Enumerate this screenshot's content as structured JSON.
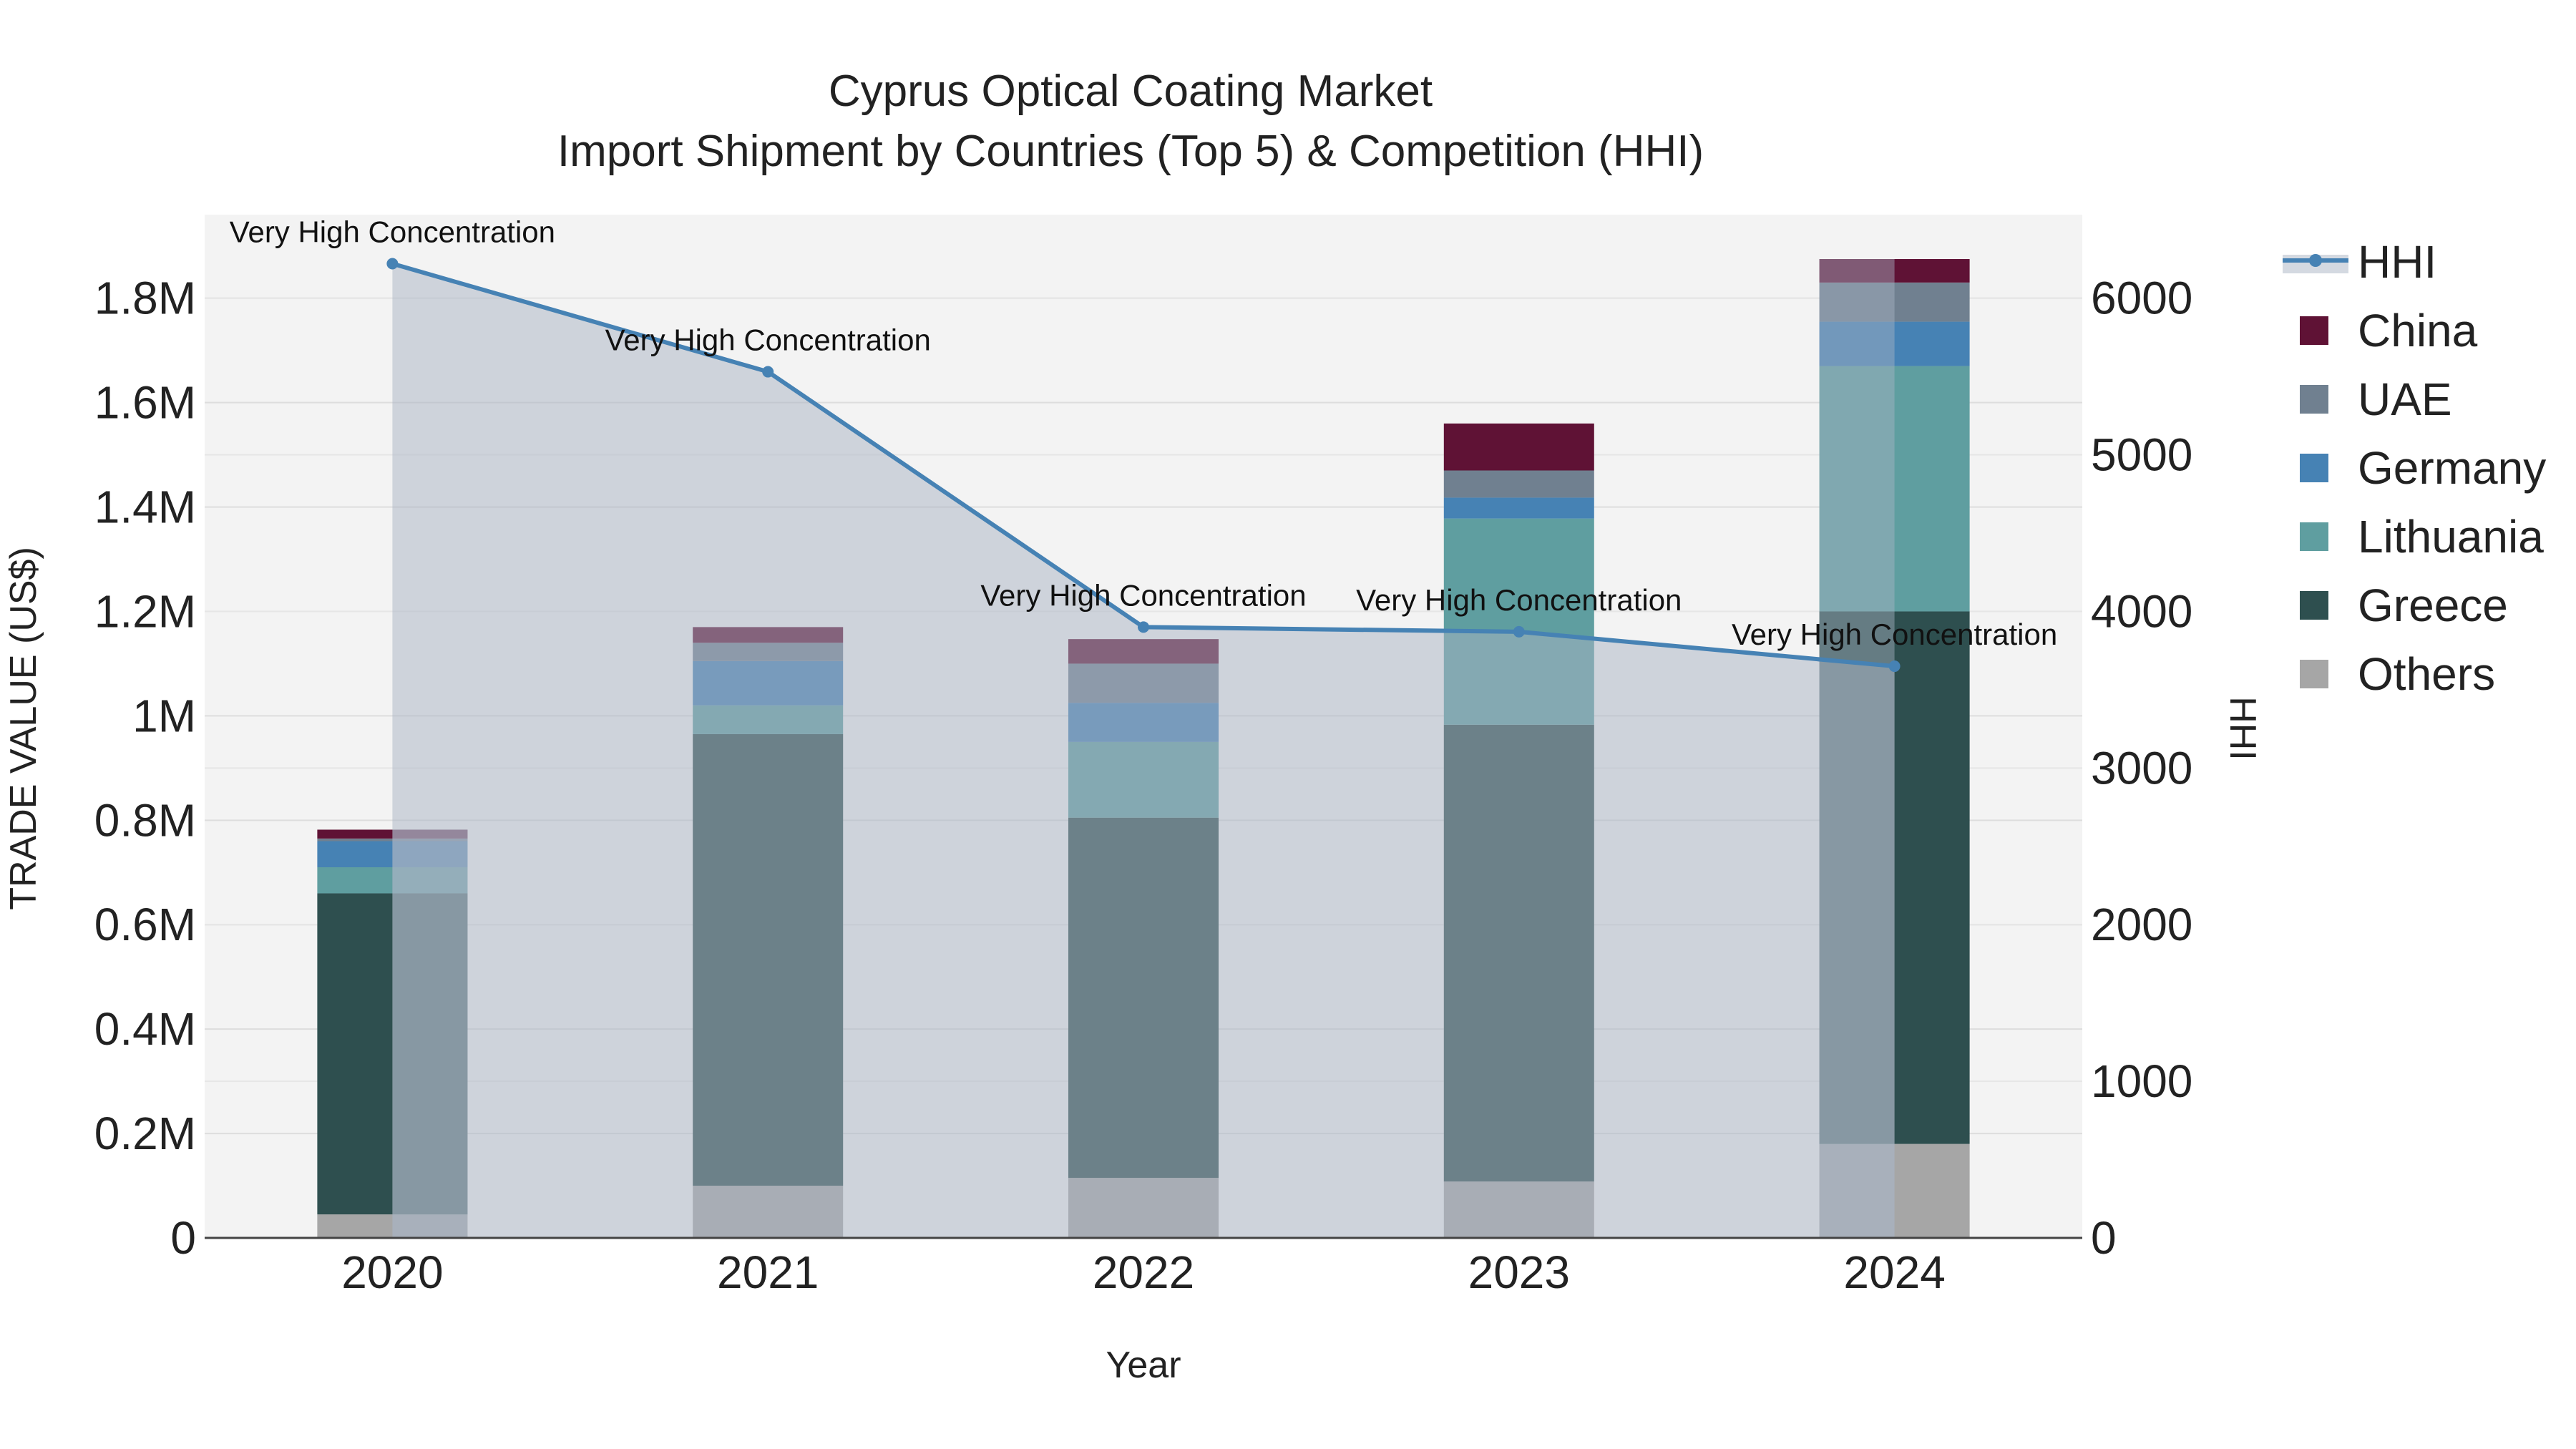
{
  "chart_data": {
    "type": "bar",
    "title": "Cyprus Optical Coating Market",
    "subtitle": "Import Shipment by Countries (Top 5) & Competition (HHI)",
    "xlabel": "Year",
    "ylabel": "TRADE VALUE (US$)",
    "y2label": "HHI",
    "categories": [
      "2020",
      "2021",
      "2022",
      "2023",
      "2024"
    ],
    "ylim": [
      0,
      1960000
    ],
    "y2lim": [
      0,
      6533
    ],
    "y_ticks": [
      0,
      200000,
      400000,
      600000,
      800000,
      1000000,
      1200000,
      1400000,
      1600000,
      1800000
    ],
    "y_tick_labels": [
      "0",
      "0.2M",
      "0.4M",
      "0.6M",
      "0.8M",
      "1M",
      "1.2M",
      "1.4M",
      "1.6M",
      "1.8M"
    ],
    "y2_ticks": [
      0,
      1000,
      2000,
      3000,
      4000,
      5000,
      6000
    ],
    "y2_tick_labels": [
      "0",
      "1000",
      "2000",
      "3000",
      "4000",
      "5000",
      "6000"
    ],
    "series": [
      {
        "name": "Others",
        "color": "#a6a6a6",
        "values": [
          45000,
          100000,
          115000,
          108000,
          180000
        ]
      },
      {
        "name": "Greece",
        "color": "#2e4f4f",
        "values": [
          615000,
          865000,
          690000,
          875000,
          1020000
        ]
      },
      {
        "name": "Lithuania",
        "color": "#5f9ea0",
        "values": [
          50000,
          55000,
          145000,
          395000,
          470000
        ]
      },
      {
        "name": "Germany",
        "color": "#4682b4",
        "values": [
          50000,
          85000,
          75000,
          40000,
          85000
        ]
      },
      {
        "name": "UAE",
        "color": "#708090",
        "values": [
          5000,
          35000,
          75000,
          52000,
          75000
        ]
      },
      {
        "name": "China",
        "color": "#5f1235",
        "values": [
          17000,
          30000,
          47000,
          90000,
          45000
        ]
      }
    ],
    "hhi": {
      "name": "HHI",
      "color": "#4682b4",
      "values": [
        6220,
        5530,
        3900,
        3870,
        3650
      ],
      "annotations": [
        "Very High Concentration",
        "Very High Concentration",
        "Very High Concentration",
        "Very High Concentration",
        "Very High Concentration"
      ]
    },
    "legend": [
      "HHI",
      "China",
      "UAE",
      "Germany",
      "Lithuania",
      "Greece",
      "Others"
    ]
  }
}
